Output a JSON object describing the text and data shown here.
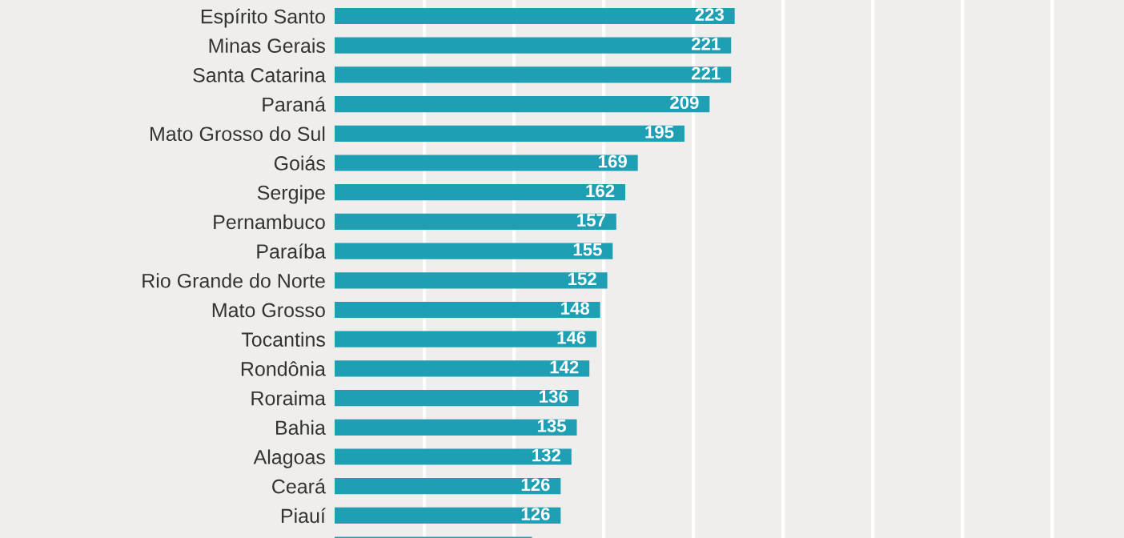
{
  "chart_data": {
    "type": "bar",
    "orientation": "horizontal",
    "categories": [
      "Espírito Santo",
      "Minas Gerais",
      "Santa Catarina",
      "Paraná",
      "Mato Grosso do Sul",
      "Goiás",
      "Sergipe",
      "Pernambuco",
      "Paraíba",
      "Rio Grande do Norte",
      "Mato Grosso",
      "Tocantins",
      "Rondônia",
      "Roraima",
      "Bahia",
      "Alagoas",
      "Ceará",
      "Piauí",
      null
    ],
    "values": [
      223,
      221,
      221,
      209,
      195,
      169,
      162,
      157,
      155,
      152,
      148,
      146,
      142,
      136,
      135,
      132,
      126,
      126,
      110
    ],
    "value_labels": [
      "223",
      "221",
      "221",
      "209",
      "195",
      "169",
      "162",
      "157",
      "155",
      "152",
      "148",
      "146",
      "142",
      "136",
      "135",
      "132",
      "126",
      "126",
      null
    ],
    "color": "#1f9fb3",
    "xlim": [
      0,
      440
    ],
    "xticks": [
      {
        "value": 50,
        "label": null
      },
      {
        "value": 100,
        "label": null
      },
      {
        "value": 150,
        "label": null
      },
      {
        "value": 200,
        "label": null
      },
      {
        "value": 250,
        "label": null
      },
      {
        "value": 300,
        "label": null
      },
      {
        "value": 350,
        "label": null
      },
      {
        "value": 400,
        "label": null
      }
    ],
    "grid": "x",
    "tick_labels": "y"
  }
}
